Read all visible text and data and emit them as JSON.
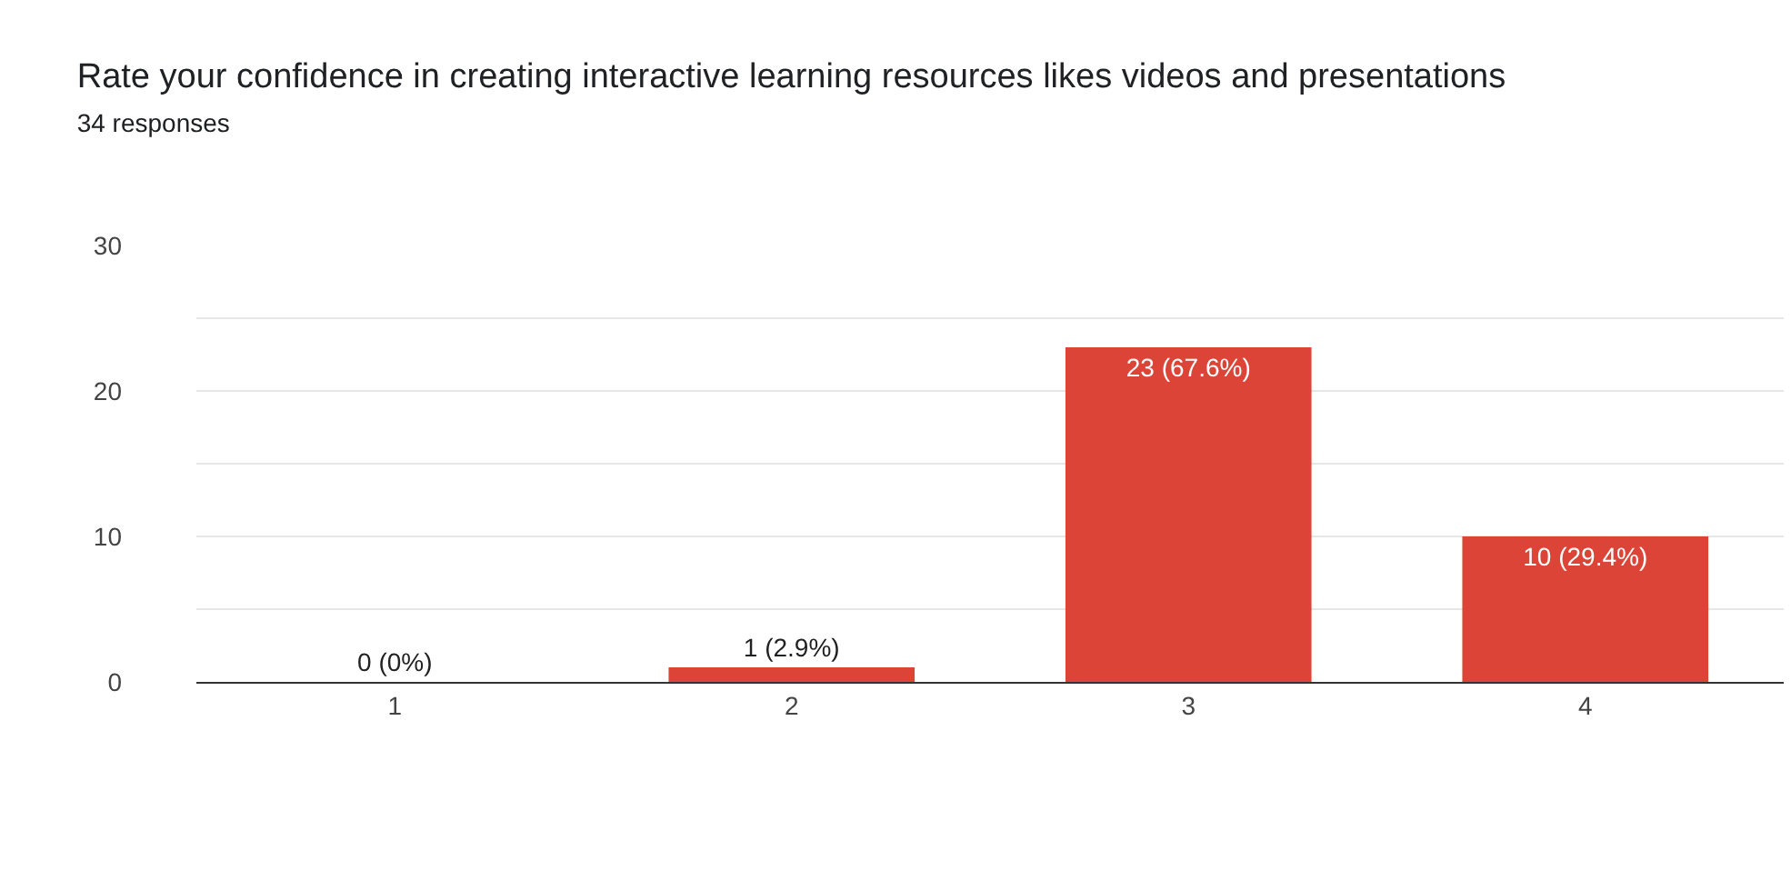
{
  "chart_data": {
    "type": "bar",
    "title": "Rate your confidence in creating interactive learning resources likes videos and presentations",
    "subtitle": "34 responses",
    "categories": [
      "1",
      "2",
      "3",
      "4"
    ],
    "values": [
      0,
      1,
      23,
      10
    ],
    "color": "#db4437",
    "value_labels": [
      "0 (0%)",
      "1 (2.9%)",
      "23 (67.6%)",
      "10 (29.4%)"
    ],
    "ylim": [
      0,
      30
    ],
    "yticks": [
      0,
      {
        "value": 5,
        "label": null
      },
      10,
      {
        "value": 15,
        "label": null
      },
      20,
      {
        "value": 25,
        "label": null
      },
      30
    ],
    "grid": "y"
  }
}
